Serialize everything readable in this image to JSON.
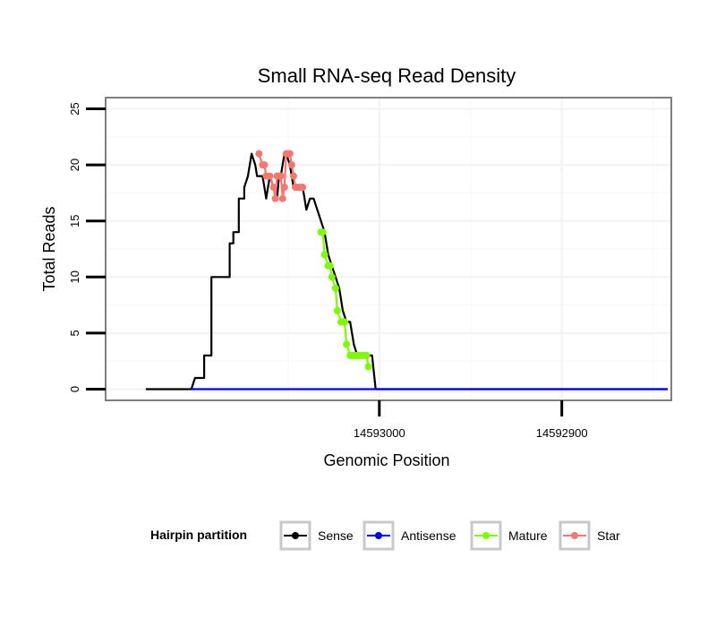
{
  "chart_data": {
    "type": "line",
    "title": "Small RNA-seq Read Density",
    "xlabel": "Genomic Position",
    "ylabel": "Total Reads",
    "xlim": [
      14593150,
      14592840
    ],
    "ylim": [
      -1,
      26
    ],
    "x_reversed": true,
    "x_ticks": [
      14593000,
      14592900
    ],
    "x_tick_labels": [
      "14593000",
      "14592900"
    ],
    "y_ticks": [
      0,
      5,
      10,
      15,
      20,
      25
    ],
    "y_tick_labels": [
      "0",
      "5",
      "10",
      "15",
      "20",
      "25"
    ],
    "grid": true,
    "legend": {
      "title": "Hairpin partition",
      "position": "bottom",
      "entries": [
        {
          "name": "Sense",
          "color": "#000000"
        },
        {
          "name": "Antisense",
          "color": "#0000ff"
        },
        {
          "name": "Mature",
          "color": "#7cfc00"
        },
        {
          "name": "Star",
          "color": "#f8766d"
        }
      ]
    },
    "series": [
      {
        "name": "Sense",
        "color": "#000000",
        "style": "line",
        "x": [
          14593128,
          14593103,
          14593101,
          14593096,
          14593096,
          14593092,
          14593092,
          14593090,
          14593090,
          14593082,
          14593082,
          14593080,
          14593080,
          14593077,
          14593077,
          14593074,
          14593074,
          14593072,
          14593070,
          14593068,
          14593067,
          14593066,
          14593064,
          14593063,
          14593062,
          14593061,
          14593060,
          14593058,
          14593056,
          14593055,
          14593054,
          14593052,
          14593051,
          14593049,
          14593048,
          14593047,
          14593045,
          14593044,
          14593042,
          14593040,
          14593038,
          14593036,
          14593034,
          14593032,
          14593030,
          14593028,
          14593026,
          14593024,
          14593022,
          14593020,
          14593018,
          14593016,
          14593014,
          14593012,
          14593010,
          14593008,
          14593006,
          14593004,
          14593002,
          14593000,
          14592998,
          14592996,
          14592994,
          14592992,
          14592990,
          14592988,
          14592986,
          14592984,
          14592982,
          14592980,
          14592978,
          14592976,
          14592974,
          14592972,
          14592970,
          14592968,
          14592966,
          14592964,
          14592962,
          14592960,
          14592958,
          14592956,
          14592954,
          14592952,
          14592950,
          14592948,
          14592946,
          14592944,
          14592942,
          14592940,
          14592938,
          14592936,
          14592934,
          14592932,
          14592930,
          14592928,
          14592926,
          14592924,
          14592922,
          14592920,
          14592918,
          14592916,
          14592914,
          14592912,
          14592910,
          14592908,
          14592906,
          14592904,
          14592902,
          14592900,
          14592898,
          14592896,
          14592894,
          14592892,
          14592890,
          14592888,
          14592886,
          14592884,
          14592882,
          14592880,
          14592878,
          14592876,
          14592874,
          14592872,
          14592870,
          14592868,
          14592866,
          14592864,
          14592862,
          14592860,
          14592858,
          14592856,
          14592854,
          14592852,
          14592850,
          14592848,
          14592846,
          14592844,
          14592842
        ],
        "y": [
          0,
          0,
          1,
          1,
          3,
          3,
          10,
          10,
          10,
          10,
          13,
          13,
          14,
          14,
          17,
          17,
          18,
          19,
          21,
          20,
          19,
          19,
          19,
          18,
          17,
          18,
          19,
          18,
          17,
          19,
          19,
          21,
          21,
          20,
          19,
          18,
          18,
          18,
          18,
          16,
          17,
          17,
          16,
          15,
          14,
          12,
          11,
          10,
          9,
          7,
          6,
          6,
          4,
          3,
          3,
          3,
          3,
          3,
          0,
          0,
          0,
          0,
          0,
          0,
          0,
          0,
          0,
          0,
          0,
          0,
          0,
          0,
          0,
          0,
          0,
          0,
          0,
          0,
          0,
          0,
          0,
          0,
          0,
          0,
          0,
          0,
          0,
          0,
          0,
          0,
          0,
          0,
          0,
          0,
          0,
          0,
          0,
          0,
          0,
          0,
          0,
          0,
          0,
          0,
          0,
          0,
          0,
          0,
          0,
          0,
          0,
          0,
          0,
          0,
          0,
          0,
          0,
          0,
          0,
          0,
          0,
          0,
          0,
          0,
          0,
          0,
          0,
          0,
          0,
          0,
          0,
          0,
          0,
          0,
          0,
          0,
          0,
          0,
          0
        ]
      },
      {
        "name": "Antisense",
        "color": "#0000ff",
        "style": "line",
        "x": [
          14593103,
          14592842
        ],
        "y": [
          0,
          0
        ]
      },
      {
        "name": "Mature",
        "color": "#7cfc00",
        "style": "points",
        "x": [
          14593032,
          14593031,
          14593030,
          14593028,
          14593027,
          14593026,
          14593024,
          14593023,
          14593021,
          14593020,
          14593019,
          14593018,
          14593016,
          14593015,
          14593014,
          14593013,
          14593012,
          14593011,
          14593010,
          14593009,
          14593008,
          14593007,
          14593006
        ],
        "y": [
          14,
          14,
          12,
          11,
          11,
          10,
          9,
          7,
          6,
          6,
          6,
          4,
          3,
          3,
          3,
          3,
          3,
          3,
          3,
          3,
          3,
          3,
          2
        ]
      },
      {
        "name": "Star",
        "color": "#f8766d",
        "style": "points",
        "x": [
          14593066,
          14593064,
          14593063,
          14593062,
          14593060,
          14593058,
          14593057,
          14593056,
          14593055,
          14593054,
          14593053,
          14593052,
          14593051,
          14593050,
          14593049,
          14593048,
          14593047,
          14593046,
          14593045,
          14593044,
          14593043,
          14593042
        ],
        "y": [
          21,
          20,
          20,
          19,
          19,
          18,
          17,
          19,
          19,
          19,
          17,
          18,
          21,
          21,
          21,
          20,
          19,
          18,
          18,
          18,
          18,
          18
        ]
      }
    ]
  }
}
